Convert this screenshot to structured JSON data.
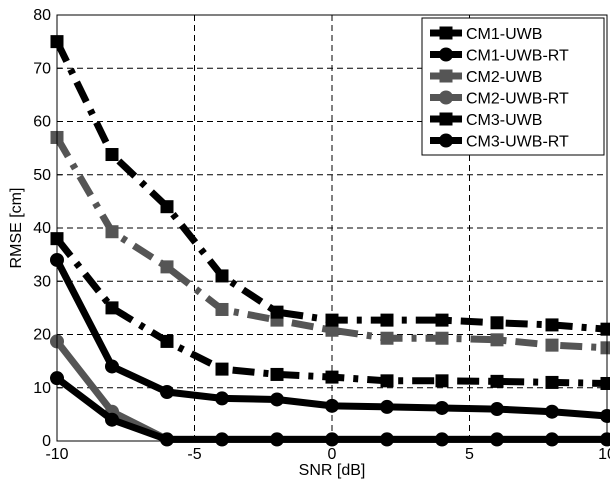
{
  "chart_data": {
    "type": "line",
    "title": "",
    "xlabel": "SNR [dB]",
    "ylabel": "RMSE [cm]",
    "xlim": [
      -10,
      10
    ],
    "ylim": [
      0,
      80
    ],
    "xticks": [
      -10,
      -5,
      0,
      5,
      10
    ],
    "yticks": [
      0,
      10,
      20,
      30,
      40,
      50,
      60,
      70,
      80
    ],
    "xtick_labels": [
      "-10",
      "-5",
      "0",
      "5",
      "10"
    ],
    "ytick_labels": [
      "0",
      "10",
      "20",
      "30",
      "40",
      "50",
      "60",
      "70",
      "80"
    ],
    "grid": true,
    "legend_position": "top-right",
    "x": [
      -10,
      -8,
      -6,
      -4,
      -2,
      0,
      2,
      4,
      6,
      8,
      10
    ],
    "series": [
      {
        "name": "CM1-UWB",
        "color": "#000000",
        "marker": "square",
        "dash": "dashdot",
        "values": [
          38,
          25,
          18.7,
          13.5,
          12.5,
          12,
          11.3,
          11.3,
          11.2,
          11,
          10.8
        ]
      },
      {
        "name": "CM1-UWB-RT",
        "color": "#000000",
        "marker": "circle",
        "dash": "solid",
        "values": [
          34,
          14,
          9.2,
          8,
          7.8,
          6.6,
          6.4,
          6.2,
          6,
          5.5,
          4.7
        ]
      },
      {
        "name": "CM2-UWB",
        "color": "#555555",
        "marker": "square",
        "dash": "dashdot",
        "values": [
          57,
          39.3,
          32.7,
          24.7,
          22.7,
          20.8,
          19.3,
          19.3,
          19,
          18,
          17.5
        ]
      },
      {
        "name": "CM2-UWB-RT",
        "color": "#555555",
        "marker": "circle",
        "dash": "solid",
        "values": [
          18.7,
          5.5,
          0.3,
          0.3,
          0.3,
          0.3,
          0.3,
          0.3,
          0.3,
          0.3,
          0.3
        ]
      },
      {
        "name": "CM3-UWB",
        "color": "#000000",
        "marker": "square",
        "dash": "dashdot",
        "values": [
          75,
          53.8,
          44,
          31,
          24.2,
          22.7,
          22.7,
          22.7,
          22.2,
          21.8,
          21
        ]
      },
      {
        "name": "CM3-UWB-RT",
        "color": "#000000",
        "marker": "circle",
        "dash": "solid",
        "values": [
          11.8,
          4,
          0.3,
          0.3,
          0.3,
          0.3,
          0.3,
          0.3,
          0.3,
          0.3,
          0.3
        ]
      }
    ]
  }
}
